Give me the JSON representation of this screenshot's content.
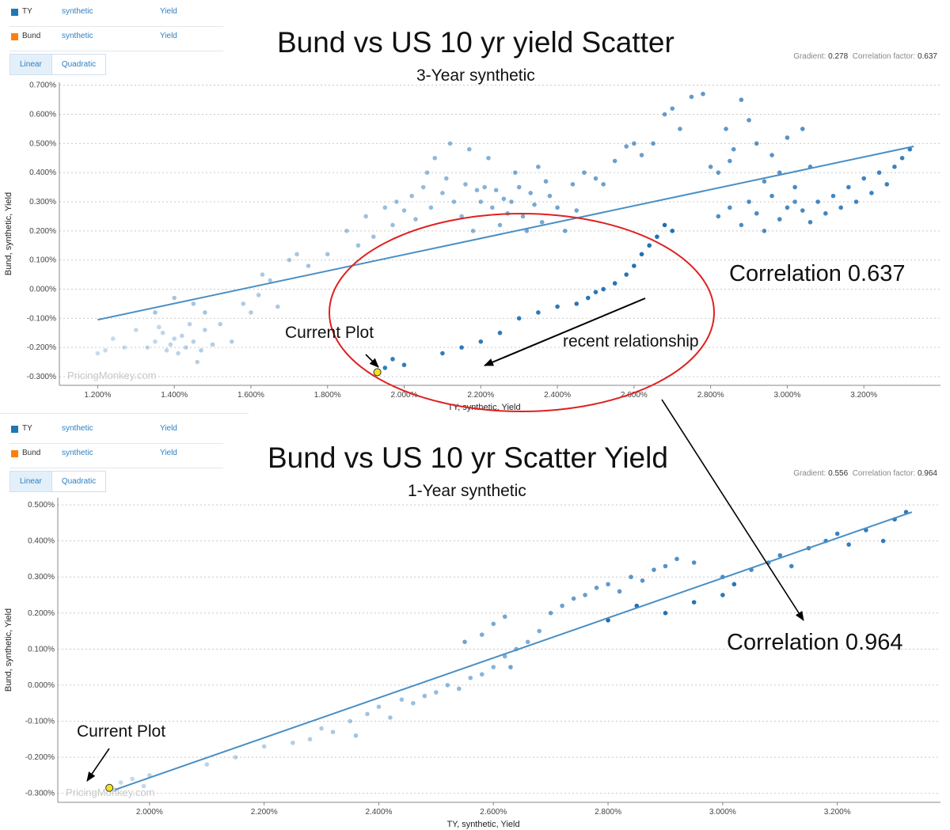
{
  "panels": [
    {
      "legend": [
        {
          "series": "TY",
          "source": "synthetic",
          "field": "Yield",
          "color": "#1f77b4"
        },
        {
          "series": "Bund",
          "source": "synthetic",
          "field": "Yield",
          "color": "#ff7f0e"
        }
      ],
      "tabs": {
        "linear": "Linear",
        "quadratic": "Quadratic",
        "active": "linear"
      },
      "title": "Bund vs US 10 yr yield Scatter",
      "subtitle": "3-Year synthetic",
      "stats": {
        "gradient_label": "Gradient:",
        "gradient": "0.278",
        "corr_label": "Correlation factor:",
        "corr": "0.637"
      },
      "watermark": "PricingMonkey.com",
      "annotations": {
        "current_plot": "Current Plot",
        "recent": "recent relationship",
        "correlation": "Correlation 0.637"
      }
    },
    {
      "legend": [
        {
          "series": "TY",
          "source": "synthetic",
          "field": "Yield",
          "color": "#1f77b4"
        },
        {
          "series": "Bund",
          "source": "synthetic",
          "field": "Yield",
          "color": "#ff7f0e"
        }
      ],
      "tabs": {
        "linear": "Linear",
        "quadratic": "Quadratic",
        "active": "linear"
      },
      "title": "Bund vs US 10 yr Scatter Yield",
      "subtitle": "1-Year synthetic",
      "stats": {
        "gradient_label": "Gradient:",
        "gradient": "0.556",
        "corr_label": "Correlation factor:",
        "corr": "0.964"
      },
      "watermark": "PricingMonkey.com",
      "annotations": {
        "current_plot": "Current Plot",
        "correlation": "Correlation 0.964"
      }
    }
  ],
  "chart_data": [
    {
      "type": "scatter",
      "title": "Bund vs US 10 yr yield Scatter",
      "subtitle": "3-Year synthetic",
      "xlabel": "TY, synthetic, Yield",
      "ylabel": "Bund, synthetic, Yield",
      "xlim": [
        1.1,
        3.4
      ],
      "ylim": [
        -0.33,
        0.71
      ],
      "x_ticks": [
        "1.200%",
        "1.400%",
        "1.600%",
        "1.800%",
        "2.000%",
        "2.200%",
        "2.400%",
        "2.600%",
        "2.800%",
        "3.000%",
        "3.200%"
      ],
      "x_tick_values": [
        1.2,
        1.4,
        1.6,
        1.8,
        2.0,
        2.2,
        2.4,
        2.6,
        2.8,
        3.0,
        3.2
      ],
      "y_ticks": [
        "0.700%",
        "0.600%",
        "0.500%",
        "0.400%",
        "0.300%",
        "0.200%",
        "0.100%",
        "0.000%",
        "-0.100%",
        "-0.200%",
        "-0.300%"
      ],
      "y_tick_values": [
        0.7,
        0.6,
        0.5,
        0.4,
        0.3,
        0.2,
        0.1,
        0.0,
        -0.1,
        -0.2,
        -0.3
      ],
      "grid": "horizontal dashed",
      "regression": {
        "gradient": 0.278,
        "correlation": 0.637,
        "x": [
          1.2,
          3.33
        ],
        "y": [
          -0.105,
          0.49
        ]
      },
      "current_point": [
        1.93,
        -0.285
      ],
      "points": [
        [
          1.2,
          -0.22
        ],
        [
          1.22,
          -0.21
        ],
        [
          1.24,
          -0.17
        ],
        [
          1.27,
          -0.2
        ],
        [
          1.3,
          -0.14
        ],
        [
          1.33,
          -0.2
        ],
        [
          1.35,
          -0.18
        ],
        [
          1.36,
          -0.13
        ],
        [
          1.37,
          -0.15
        ],
        [
          1.38,
          -0.21
        ],
        [
          1.39,
          -0.19
        ],
        [
          1.4,
          -0.17
        ],
        [
          1.41,
          -0.22
        ],
        [
          1.42,
          -0.16
        ],
        [
          1.43,
          -0.2
        ],
        [
          1.44,
          -0.12
        ],
        [
          1.45,
          -0.18
        ],
        [
          1.46,
          -0.25
        ],
        [
          1.47,
          -0.21
        ],
        [
          1.48,
          -0.14
        ],
        [
          1.5,
          -0.19
        ],
        [
          1.52,
          -0.12
        ],
        [
          1.55,
          -0.18
        ],
        [
          1.58,
          -0.05
        ],
        [
          1.6,
          -0.08
        ],
        [
          1.62,
          -0.02
        ],
        [
          1.63,
          0.05
        ],
        [
          1.65,
          0.03
        ],
        [
          1.67,
          -0.06
        ],
        [
          1.7,
          0.1
        ],
        [
          1.72,
          0.12
        ],
        [
          1.4,
          -0.03
        ],
        [
          1.45,
          -0.05
        ],
        [
          1.35,
          -0.08
        ],
        [
          1.48,
          -0.08
        ],
        [
          1.75,
          0.08
        ],
        [
          1.8,
          0.12
        ],
        [
          1.85,
          0.2
        ],
        [
          1.88,
          0.15
        ],
        [
          1.9,
          0.25
        ],
        [
          1.92,
          0.18
        ],
        [
          1.95,
          0.28
        ],
        [
          1.97,
          0.22
        ],
        [
          1.98,
          0.3
        ],
        [
          2.0,
          0.27
        ],
        [
          2.02,
          0.32
        ],
        [
          2.03,
          0.24
        ],
        [
          2.05,
          0.35
        ],
        [
          2.06,
          0.4
        ],
        [
          2.07,
          0.28
        ],
        [
          2.08,
          0.45
        ],
        [
          2.1,
          0.33
        ],
        [
          2.11,
          0.38
        ],
        [
          2.12,
          0.5
        ],
        [
          2.13,
          0.3
        ],
        [
          2.15,
          0.25
        ],
        [
          2.16,
          0.36
        ],
        [
          2.17,
          0.48
        ],
        [
          2.18,
          0.2
        ],
        [
          2.19,
          0.34
        ],
        [
          2.2,
          0.3
        ],
        [
          2.21,
          0.35
        ],
        [
          2.22,
          0.45
        ],
        [
          2.23,
          0.28
        ],
        [
          2.24,
          0.34
        ],
        [
          2.25,
          0.22
        ],
        [
          2.26,
          0.31
        ],
        [
          2.27,
          0.26
        ],
        [
          2.28,
          0.3
        ],
        [
          2.29,
          0.4
        ],
        [
          2.3,
          0.35
        ],
        [
          2.31,
          0.25
        ],
        [
          2.32,
          0.2
        ],
        [
          2.33,
          0.33
        ],
        [
          2.34,
          0.29
        ],
        [
          2.35,
          0.42
        ],
        [
          2.36,
          0.23
        ],
        [
          2.37,
          0.37
        ],
        [
          2.38,
          0.32
        ],
        [
          2.4,
          0.28
        ],
        [
          2.42,
          0.2
        ],
        [
          2.44,
          0.36
        ],
        [
          2.45,
          0.27
        ],
        [
          2.47,
          0.4
        ],
        [
          2.5,
          0.38
        ],
        [
          2.52,
          0.36
        ],
        [
          2.55,
          0.44
        ],
        [
          2.58,
          0.49
        ],
        [
          2.6,
          0.5
        ],
        [
          2.62,
          0.46
        ],
        [
          2.65,
          0.5
        ],
        [
          2.68,
          0.6
        ],
        [
          2.7,
          0.62
        ],
        [
          2.72,
          0.55
        ],
        [
          2.75,
          0.66
        ],
        [
          2.78,
          0.67
        ],
        [
          2.8,
          0.42
        ],
        [
          2.82,
          0.4
        ],
        [
          2.84,
          0.55
        ],
        [
          2.85,
          0.44
        ],
        [
          2.86,
          0.48
        ],
        [
          2.88,
          0.65
        ],
        [
          2.9,
          0.58
        ],
        [
          2.92,
          0.5
        ],
        [
          2.94,
          0.37
        ],
        [
          2.96,
          0.46
        ],
        [
          2.98,
          0.4
        ],
        [
          3.0,
          0.52
        ],
        [
          3.02,
          0.3
        ],
        [
          3.04,
          0.55
        ],
        [
          3.06,
          0.42
        ],
        [
          2.82,
          0.25
        ],
        [
          2.85,
          0.28
        ],
        [
          2.88,
          0.22
        ],
        [
          2.9,
          0.3
        ],
        [
          2.92,
          0.26
        ],
        [
          2.94,
          0.2
        ],
        [
          2.96,
          0.32
        ],
        [
          2.98,
          0.24
        ],
        [
          3.0,
          0.28
        ],
        [
          3.02,
          0.35
        ],
        [
          3.04,
          0.27
        ],
        [
          3.06,
          0.23
        ],
        [
          3.08,
          0.3
        ],
        [
          3.1,
          0.26
        ],
        [
          3.12,
          0.32
        ],
        [
          3.14,
          0.28
        ],
        [
          3.16,
          0.35
        ],
        [
          3.18,
          0.3
        ],
        [
          3.2,
          0.38
        ],
        [
          3.22,
          0.33
        ],
        [
          3.24,
          0.4
        ],
        [
          3.26,
          0.36
        ],
        [
          3.28,
          0.42
        ],
        [
          3.3,
          0.45
        ],
        [
          3.32,
          0.48
        ],
        [
          1.93,
          -0.29
        ],
        [
          1.95,
          -0.27
        ],
        [
          1.97,
          -0.24
        ],
        [
          2.0,
          -0.26
        ],
        [
          2.1,
          -0.22
        ],
        [
          2.15,
          -0.2
        ],
        [
          2.2,
          -0.18
        ],
        [
          2.25,
          -0.15
        ],
        [
          2.3,
          -0.1
        ],
        [
          2.35,
          -0.08
        ],
        [
          2.4,
          -0.06
        ],
        [
          2.45,
          -0.05
        ],
        [
          2.48,
          -0.03
        ],
        [
          2.5,
          -0.01
        ],
        [
          2.52,
          0.0
        ],
        [
          2.55,
          0.02
        ],
        [
          2.58,
          0.05
        ],
        [
          2.6,
          0.08
        ],
        [
          2.62,
          0.12
        ],
        [
          2.64,
          0.15
        ],
        [
          2.66,
          0.18
        ],
        [
          2.68,
          0.22
        ],
        [
          2.7,
          0.2
        ]
      ]
    },
    {
      "type": "scatter",
      "title": "Bund vs US 10 yr Scatter Yield",
      "subtitle": "1-Year synthetic",
      "xlabel": "TY, synthetic, Yield",
      "ylabel": "Bund, synthetic, Yield",
      "xlim": [
        1.84,
        3.38
      ],
      "ylim": [
        -0.325,
        0.52
      ],
      "x_ticks": [
        "2.000%",
        "2.200%",
        "2.400%",
        "2.600%",
        "2.800%",
        "3.000%",
        "3.200%"
      ],
      "x_tick_values": [
        2.0,
        2.2,
        2.4,
        2.6,
        2.8,
        3.0,
        3.2
      ],
      "y_ticks": [
        "0.500%",
        "0.400%",
        "0.300%",
        "0.200%",
        "0.100%",
        "0.000%",
        "-0.100%",
        "-0.200%",
        "-0.300%"
      ],
      "y_tick_values": [
        0.5,
        0.4,
        0.3,
        0.2,
        0.1,
        0.0,
        -0.1,
        -0.2,
        -0.3
      ],
      "grid": "horizontal dashed",
      "regression": {
        "gradient": 0.556,
        "correlation": 0.964,
        "x": [
          1.94,
          3.33
        ],
        "y": [
          -0.29,
          0.48
        ]
      },
      "current_point": [
        1.93,
        -0.285
      ],
      "points": [
        [
          1.94,
          -0.29
        ],
        [
          1.95,
          -0.27
        ],
        [
          1.97,
          -0.26
        ],
        [
          1.99,
          -0.28
        ],
        [
          2.0,
          -0.25
        ],
        [
          2.1,
          -0.22
        ],
        [
          2.15,
          -0.2
        ],
        [
          2.2,
          -0.17
        ],
        [
          2.25,
          -0.16
        ],
        [
          2.28,
          -0.15
        ],
        [
          2.3,
          -0.12
        ],
        [
          2.32,
          -0.13
        ],
        [
          2.35,
          -0.1
        ],
        [
          2.36,
          -0.14
        ],
        [
          2.38,
          -0.08
        ],
        [
          2.4,
          -0.06
        ],
        [
          2.42,
          -0.09
        ],
        [
          2.44,
          -0.04
        ],
        [
          2.46,
          -0.05
        ],
        [
          2.48,
          -0.03
        ],
        [
          2.5,
          -0.02
        ],
        [
          2.52,
          0.0
        ],
        [
          2.54,
          -0.01
        ],
        [
          2.56,
          0.02
        ],
        [
          2.58,
          0.03
        ],
        [
          2.6,
          0.05
        ],
        [
          2.62,
          0.08
        ],
        [
          2.64,
          0.1
        ],
        [
          2.66,
          0.12
        ],
        [
          2.68,
          0.15
        ],
        [
          2.58,
          0.14
        ],
        [
          2.6,
          0.17
        ],
        [
          2.62,
          0.19
        ],
        [
          2.55,
          0.12
        ],
        [
          2.63,
          0.05
        ],
        [
          2.7,
          0.2
        ],
        [
          2.72,
          0.22
        ],
        [
          2.74,
          0.24
        ],
        [
          2.76,
          0.25
        ],
        [
          2.78,
          0.27
        ],
        [
          2.8,
          0.28
        ],
        [
          2.82,
          0.26
        ],
        [
          2.84,
          0.3
        ],
        [
          2.86,
          0.29
        ],
        [
          2.88,
          0.32
        ],
        [
          2.9,
          0.33
        ],
        [
          2.92,
          0.35
        ],
        [
          2.95,
          0.34
        ],
        [
          3.0,
          0.3
        ],
        [
          3.05,
          0.32
        ],
        [
          3.08,
          0.34
        ],
        [
          3.1,
          0.36
        ],
        [
          3.12,
          0.33
        ],
        [
          3.15,
          0.38
        ],
        [
          3.18,
          0.4
        ],
        [
          3.2,
          0.42
        ],
        [
          3.22,
          0.39
        ],
        [
          3.25,
          0.43
        ],
        [
          3.28,
          0.4
        ],
        [
          3.3,
          0.46
        ],
        [
          3.32,
          0.48
        ],
        [
          3.0,
          0.25
        ],
        [
          3.02,
          0.28
        ],
        [
          2.95,
          0.23
        ],
        [
          2.9,
          0.2
        ],
        [
          2.85,
          0.22
        ],
        [
          2.8,
          0.18
        ]
      ]
    }
  ]
}
